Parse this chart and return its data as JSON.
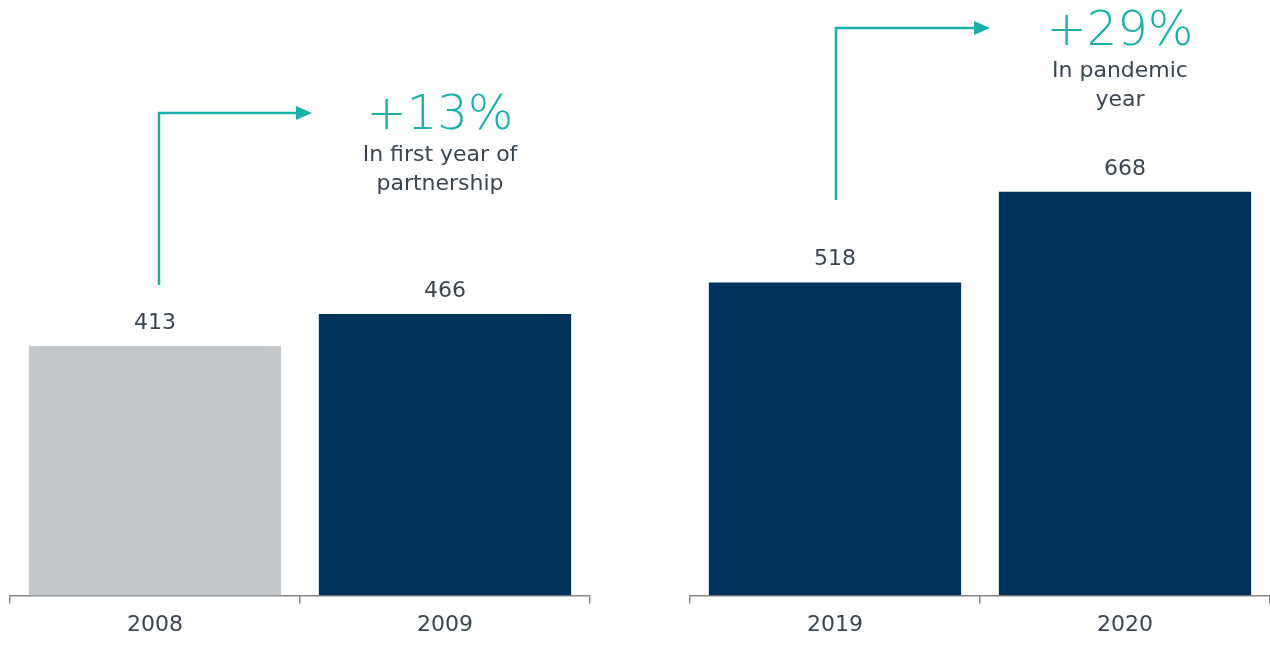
{
  "chart_data": [
    {
      "type": "bar",
      "categories": [
        "2008",
        "2009"
      ],
      "colors": [
        "#c5c8cb",
        "#00335c"
      ],
      "values": [
        413,
        466
      ],
      "data_labels": true,
      "tick_labels": "x",
      "grid": false,
      "legend": false,
      "annotations": [
        "+13%",
        "In first year of partnership"
      ]
    },
    {
      "type": "bar",
      "categories": [
        "2019",
        "2020"
      ],
      "colors": [
        "#00335c",
        "#00335c"
      ],
      "values": [
        518,
        668
      ],
      "data_labels": true,
      "tick_labels": "x",
      "grid": false,
      "legend": false,
      "annotations": [
        "+29%",
        "In pandemic year"
      ]
    }
  ]
}
